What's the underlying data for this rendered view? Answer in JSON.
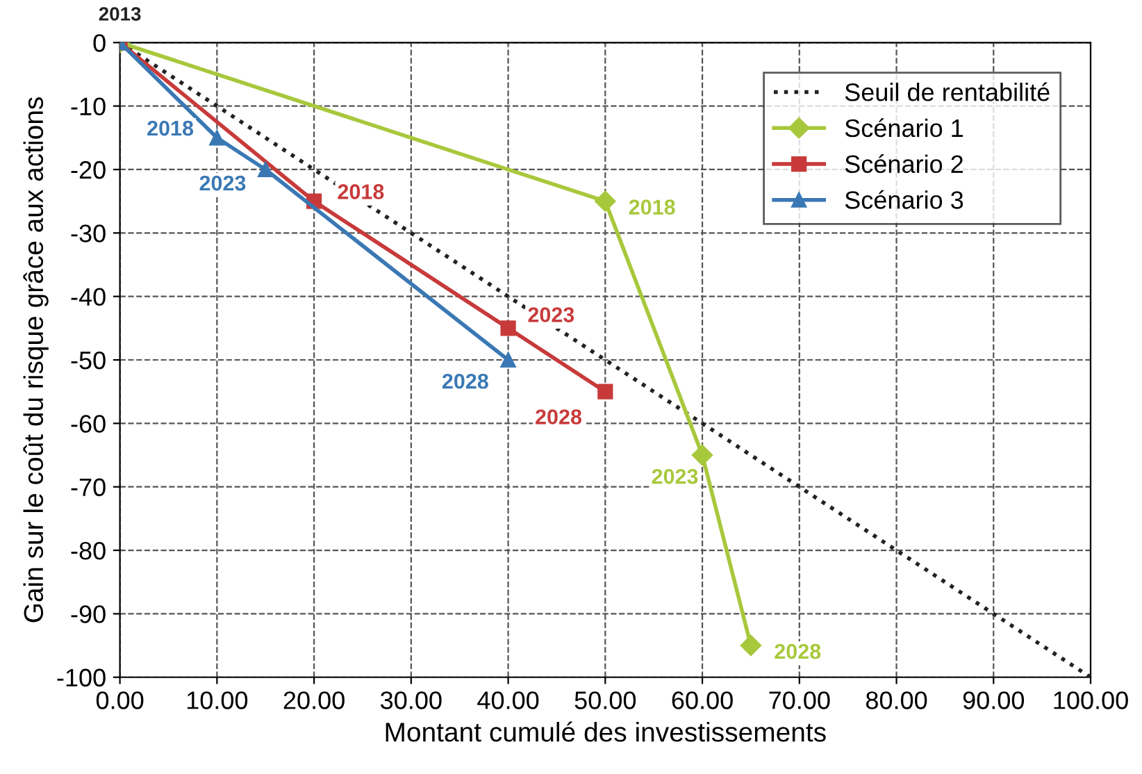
{
  "chart_data": {
    "type": "line",
    "xlabel": "Montant cumulé des investissements",
    "ylabel": "Gain sur le coût du risque grâce aux actions",
    "xlim": [
      0,
      100
    ],
    "ylim": [
      -100,
      0
    ],
    "xticks": [
      {
        "value": 0,
        "label": "0.00"
      },
      {
        "value": 10,
        "label": "10.00"
      },
      {
        "value": 20,
        "label": "20.00"
      },
      {
        "value": 30,
        "label": "30.00"
      },
      {
        "value": 40,
        "label": "40.00"
      },
      {
        "value": 50,
        "label": "50.00"
      },
      {
        "value": 60,
        "label": "60.00"
      },
      {
        "value": 70,
        "label": "70.00"
      },
      {
        "value": 80,
        "label": "80.00"
      },
      {
        "value": 90,
        "label": "90.00"
      },
      {
        "value": 100,
        "label": "100.00"
      }
    ],
    "yticks": [
      0,
      -10,
      -20,
      -30,
      -40,
      -50,
      -60,
      -70,
      -80,
      -90,
      -100
    ],
    "grid": true,
    "legend": "top right",
    "annotations": [
      {
        "text": "2013",
        "x": 0,
        "y": 0
      },
      {
        "text": "2018",
        "x": 50,
        "y": -25
      },
      {
        "text": "2023",
        "x": 60,
        "y": -65
      },
      {
        "text": "2028",
        "x": 65,
        "y": -95
      },
      {
        "text": "2018",
        "x": 20,
        "y": -25
      },
      {
        "text": "2023",
        "x": 40,
        "y": -45
      },
      {
        "text": "2028",
        "x": 50,
        "y": -55
      },
      {
        "text": "2018",
        "x": 10,
        "y": -15
      },
      {
        "text": "2023",
        "x": 15,
        "y": -20
      },
      {
        "text": "2028",
        "x": 40,
        "y": -50
      }
    ],
    "series": [
      {
        "name": "Seuil de rentabilité",
        "color": "#222222",
        "x": [
          0,
          100
        ],
        "values": [
          0,
          -100
        ],
        "line_style": "dotted",
        "marker": "none"
      },
      {
        "name": "Scénario 1",
        "color": "#a8c83c",
        "x": [
          0,
          50,
          60,
          65
        ],
        "values": [
          0,
          -25,
          -65,
          -95
        ],
        "marker": "diamond",
        "line_style": "solid"
      },
      {
        "name": "Scénario 2",
        "color": "#c83a3a",
        "x": [
          0,
          20,
          40,
          50
        ],
        "values": [
          0,
          -25,
          -45,
          -55
        ],
        "marker": "square",
        "line_style": "solid"
      },
      {
        "name": "Scénario 3",
        "color": "#3a78b4",
        "x": [
          0,
          10,
          15,
          40
        ],
        "values": [
          0,
          -15,
          -20,
          -50
        ],
        "marker": "triangle",
        "line_style": "solid"
      }
    ]
  }
}
